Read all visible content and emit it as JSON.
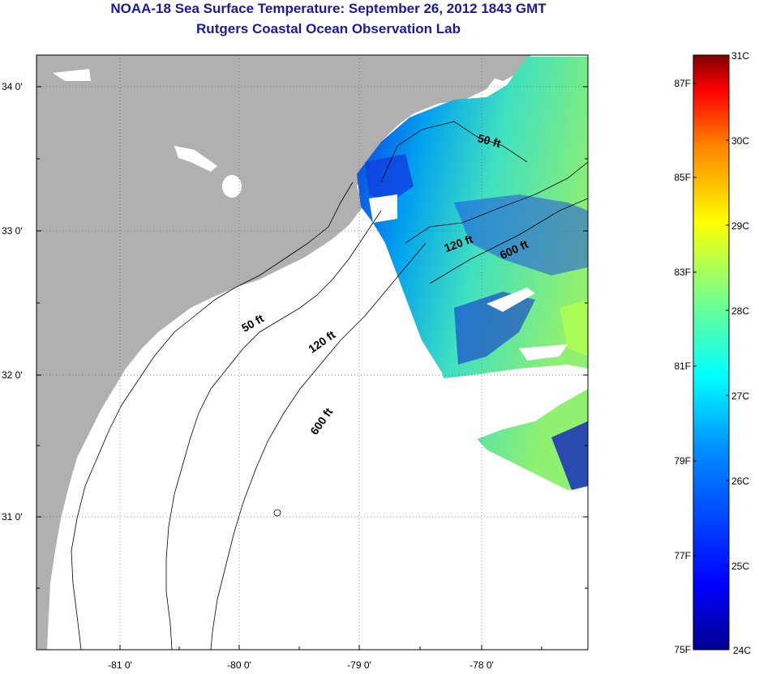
{
  "header": {
    "title": "NOAA-18 Sea Surface Temperature:  September 26, 2012 1843 GMT",
    "subtitle": "Rutgers Coastal Ocean Observation Lab"
  },
  "map": {
    "lat_ticks": [
      "34 0'",
      "33 0'",
      "32 0'",
      "31 0'"
    ],
    "lon_ticks": [
      "-81 0'",
      "-80 0'",
      "-79 0'",
      "-78 0'"
    ],
    "land_color": "#b0b0b0",
    "contours": [
      {
        "label": "50 ft",
        "region": "nearshore"
      },
      {
        "label": "120 ft",
        "region": "mid-shelf"
      },
      {
        "label": "600 ft",
        "region": "shelf-break"
      },
      {
        "label": "50 ft",
        "region": "nearshore-north"
      },
      {
        "label": "120 ft",
        "region": "mid-shelf-north"
      },
      {
        "label": "600 ft",
        "region": "shelf-break-north"
      }
    ]
  },
  "colorbar": {
    "celsius_labels": [
      "31C",
      "30C",
      "29C",
      "28C",
      "27C",
      "26C",
      "25C",
      "24C"
    ],
    "fahrenheit_labels": [
      "87F",
      "85F",
      "83F",
      "81F",
      "79F",
      "77F",
      "75F"
    ],
    "range_c": [
      24,
      31
    ],
    "colors": [
      "#00008f",
      "#0000ff",
      "#0080ff",
      "#00ffff",
      "#80ff80",
      "#ffff00",
      "#ff8000",
      "#ff0000",
      "#800000"
    ]
  }
}
